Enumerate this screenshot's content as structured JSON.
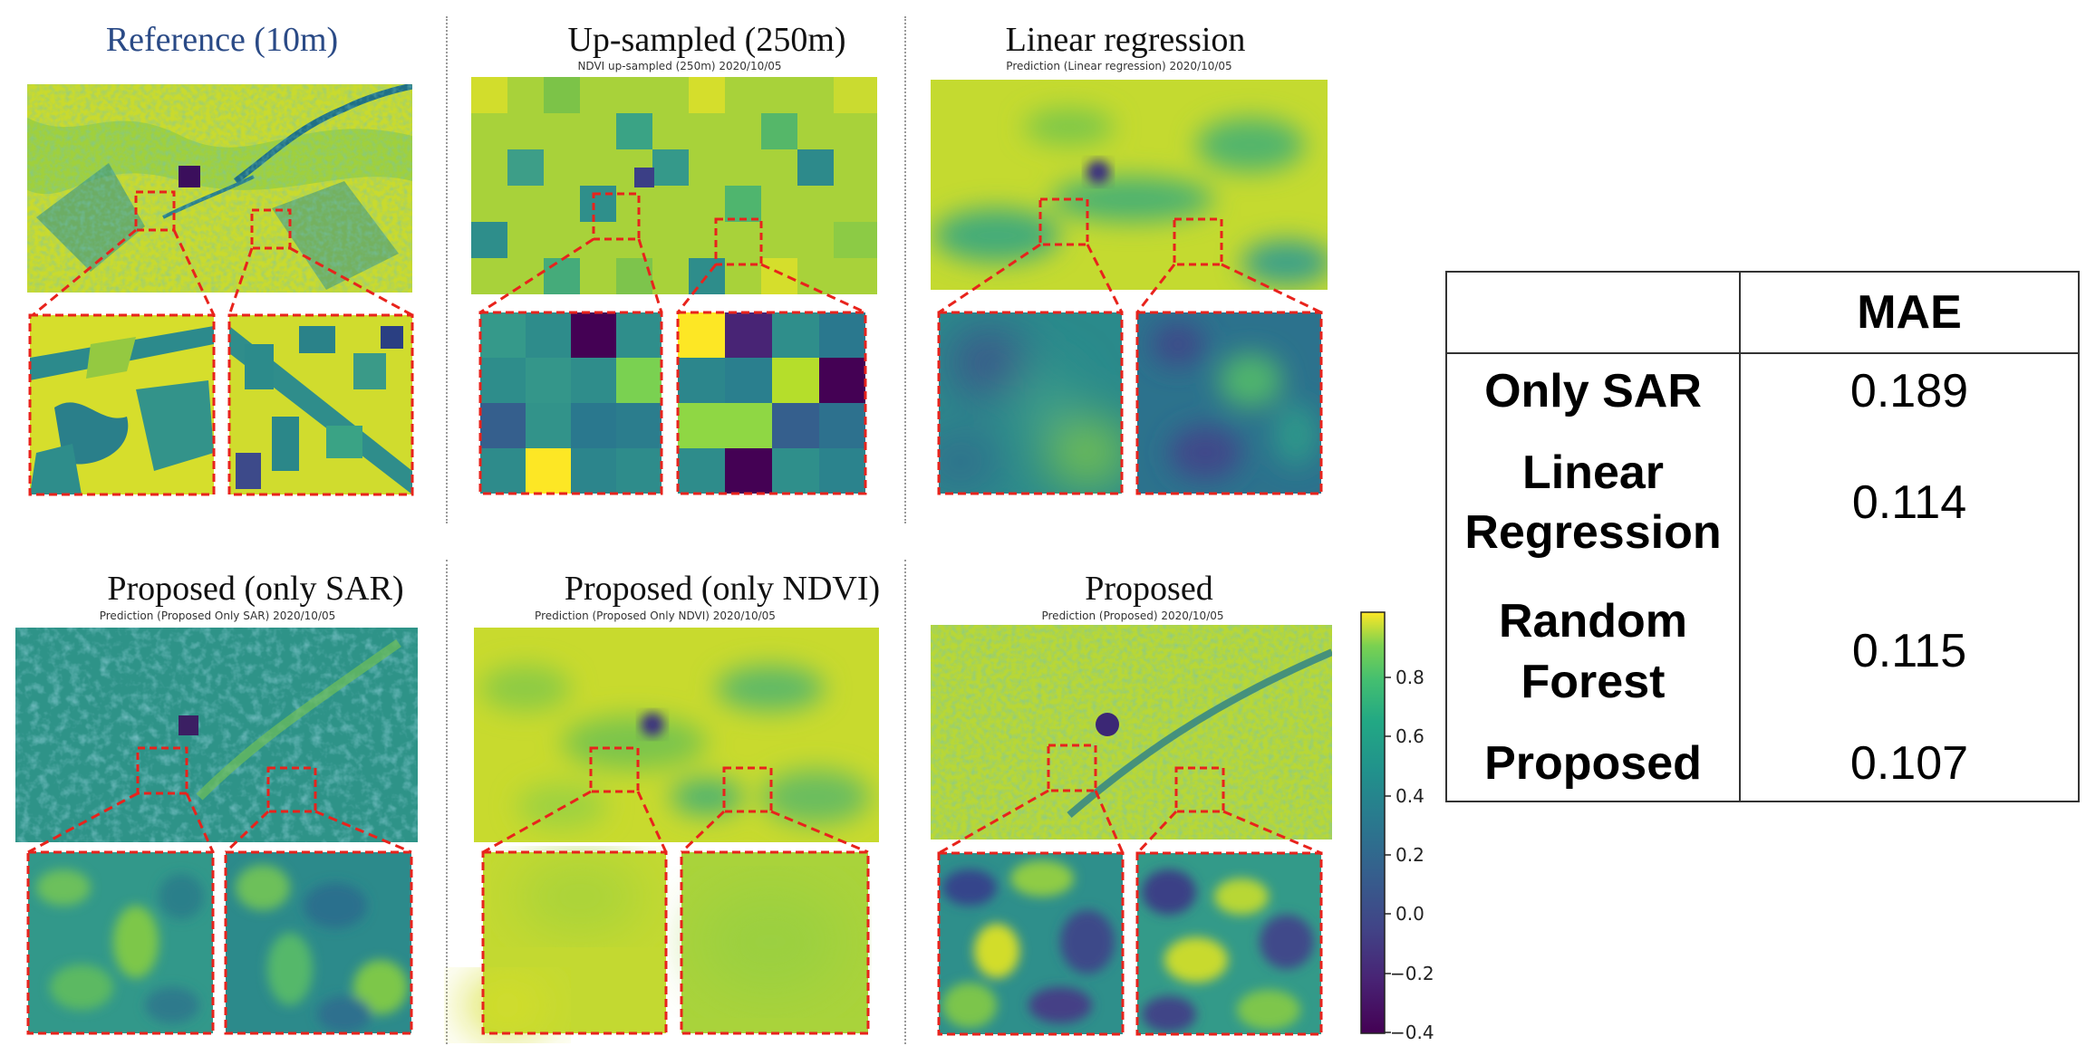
{
  "panels": [
    {
      "title": "Reference (10m)",
      "subtitle": ""
    },
    {
      "title": "Up-sampled (250m)",
      "subtitle": "NDVI up-sampled (250m) 2020/10/05"
    },
    {
      "title": "Linear regression",
      "subtitle": "Prediction (Linear regression) 2020/10/05"
    },
    {
      "title": "Proposed (only SAR)",
      "subtitle": "Prediction (Proposed  Only SAR) 2020/10/05"
    },
    {
      "title": "Proposed (only NDVI)",
      "subtitle": "Prediction (Proposed  Only NDVI) 2020/10/05"
    },
    {
      "title": "Proposed",
      "subtitle": "Prediction (Proposed) 2020/10/05"
    }
  ],
  "colorbar": {
    "ticks": [
      "0.8",
      "0.6",
      "0.4",
      "0.2",
      "0.0",
      "−0.2",
      "−0.4"
    ],
    "colormap": "viridis"
  },
  "table": {
    "header": "MAE",
    "rows": [
      {
        "label": "Only SAR",
        "value": "0.189"
      },
      {
        "label": "Linear Regression",
        "value": "0.114"
      },
      {
        "label": "Random Forest",
        "value": "0.115"
      },
      {
        "label": "Proposed",
        "value": "0.107"
      }
    ]
  },
  "colors": {
    "zoom_box": "#e8231c",
    "yellow": "#e5df2a",
    "green": "#7cc348",
    "teal": "#2b8e8c",
    "purple": "#3b1c5a"
  }
}
